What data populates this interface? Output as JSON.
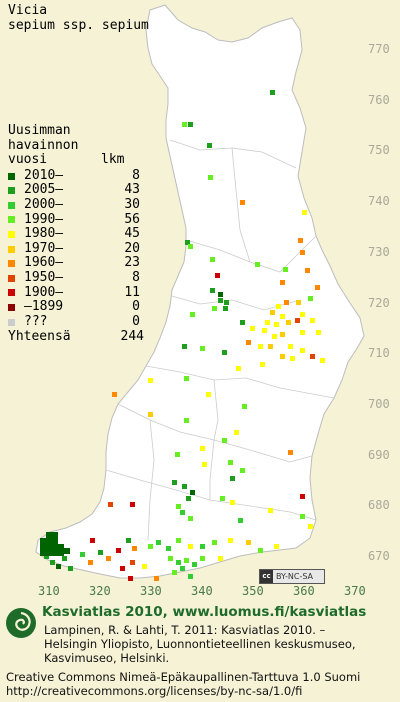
{
  "title": {
    "genus": "Vicia",
    "taxon": "sepium ssp. sepium"
  },
  "legend": {
    "heading_1": "Uusimman",
    "heading_2": "havainnon",
    "heading_col1": "vuosi",
    "heading_col2": "lkm",
    "items": [
      {
        "label": "2010–",
        "count": "8",
        "color": "#006400"
      },
      {
        "label": "2005–",
        "count": "43",
        "color": "#1e9e1e"
      },
      {
        "label": "2000–",
        "count": "30",
        "color": "#33cc33"
      },
      {
        "label": "1990–",
        "count": "56",
        "color": "#66ee22"
      },
      {
        "label": "1980–",
        "count": "45",
        "color": "#ffff00"
      },
      {
        "label": "1970–",
        "count": "20",
        "color": "#ffcc00"
      },
      {
        "label": "1960–",
        "count": "23",
        "color": "#ff8800"
      },
      {
        "label": "1950–",
        "count": "8",
        "color": "#e04400"
      },
      {
        "label": "1900–",
        "count": "11",
        "color": "#cc0000"
      },
      {
        "label": "–1899",
        "count": "0",
        "color": "#8b0000"
      },
      {
        "label": " ???",
        "count": "0",
        "color": "#cccccc"
      }
    ],
    "total_label": "Yhteensä",
    "total_count": "244"
  },
  "axes": {
    "y_ticks": [
      "770",
      "760",
      "750",
      "740",
      "730",
      "720",
      "710",
      "700",
      "690",
      "680",
      "670"
    ],
    "x_ticks": [
      "310",
      "320",
      "330",
      "340",
      "350",
      "360",
      "370"
    ]
  },
  "map": {
    "land_color": "#ffffff",
    "background_color": "#f5f2d6",
    "border_color": "#c8c8c8"
  },
  "license_badge": {
    "cc": "cc",
    "text": "BY-NC-SA"
  },
  "footer": {
    "title": "Kasviatlas 2010, www.luomus.fi/kasviatlas",
    "ref_line1": "Lampinen, R. & Lahti, T. 2011: Kasviatlas 2010. –",
    "ref_line2": "Helsingin Yliopisto, Luonnontieteellinen keskusmuseo,",
    "ref_line3": "Kasvimuseo, Helsinki.",
    "license_line1": "Creative Commons Nimeä-Epäkaupallinen-Tarttuva 1.0 Suomi",
    "license_line2": "http://creativecommons.org/licenses/by-nc-sa/1.0/fi"
  }
}
